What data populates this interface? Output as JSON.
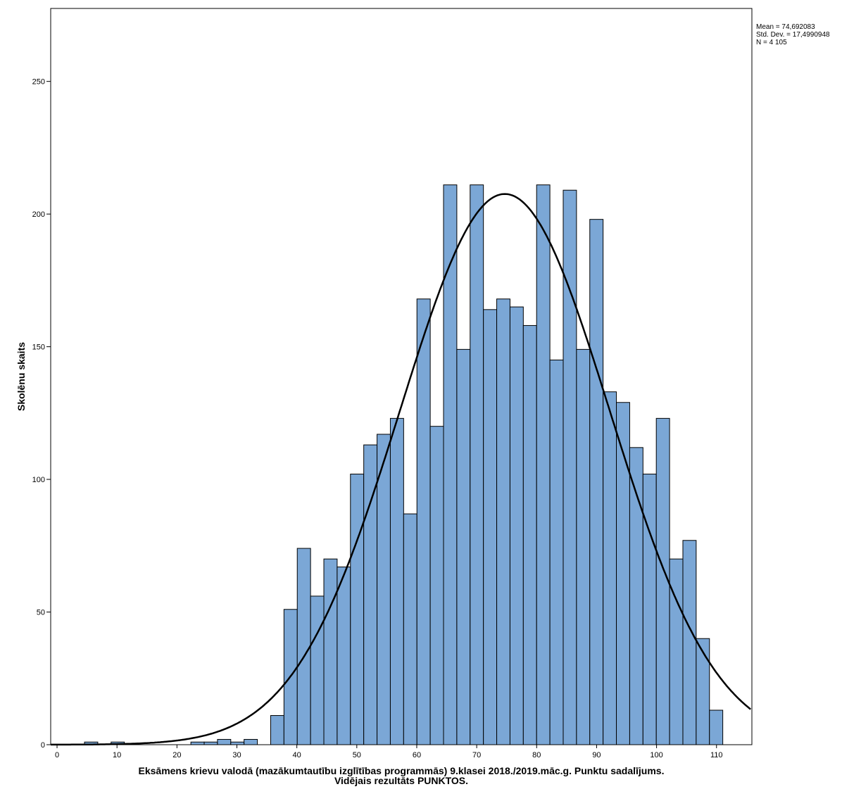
{
  "chart_data": {
    "type": "bar",
    "subtype": "histogram-with-normal-curve",
    "xlabel_line1": "Eksāmens krievu valodā (mazākumtautību izglītības programmās) 9.klasei 2018./2019.māc.g. Punktu sadalījums.",
    "xlabel_line2": "Vidējais rezultāts PUNKTOS.",
    "ylabel": "Skolēnu skaits",
    "xlim": [
      -1.06,
      115.9
    ],
    "ylim": [
      0,
      277.5
    ],
    "xticks": [
      0,
      10,
      20,
      30,
      40,
      50,
      60,
      70,
      80,
      90,
      100,
      110
    ],
    "yticks": [
      0,
      50,
      100,
      150,
      200,
      250
    ],
    "bin_start": 4.58,
    "bin_width": 2.218,
    "counts": [
      1,
      0,
      1,
      0,
      0,
      0,
      0,
      0,
      1,
      1,
      2,
      1,
      2,
      0,
      11,
      51,
      74,
      56,
      70,
      67,
      102,
      113,
      117,
      123,
      87,
      168,
      120,
      211,
      149,
      211,
      164,
      168,
      165,
      158,
      211,
      145,
      209,
      149,
      198,
      133,
      129,
      112,
      102,
      123,
      70,
      77,
      40,
      13
    ],
    "bar_color": "#7BA7D6",
    "curve": {
      "mean": 74.692083,
      "sd": 17.4990948,
      "n": 4105
    },
    "stats": {
      "mean": "Mean = 74,692083",
      "sd": "Std. Dev. = 17,4990948",
      "n": "N = 4 105"
    },
    "grid": false
  }
}
